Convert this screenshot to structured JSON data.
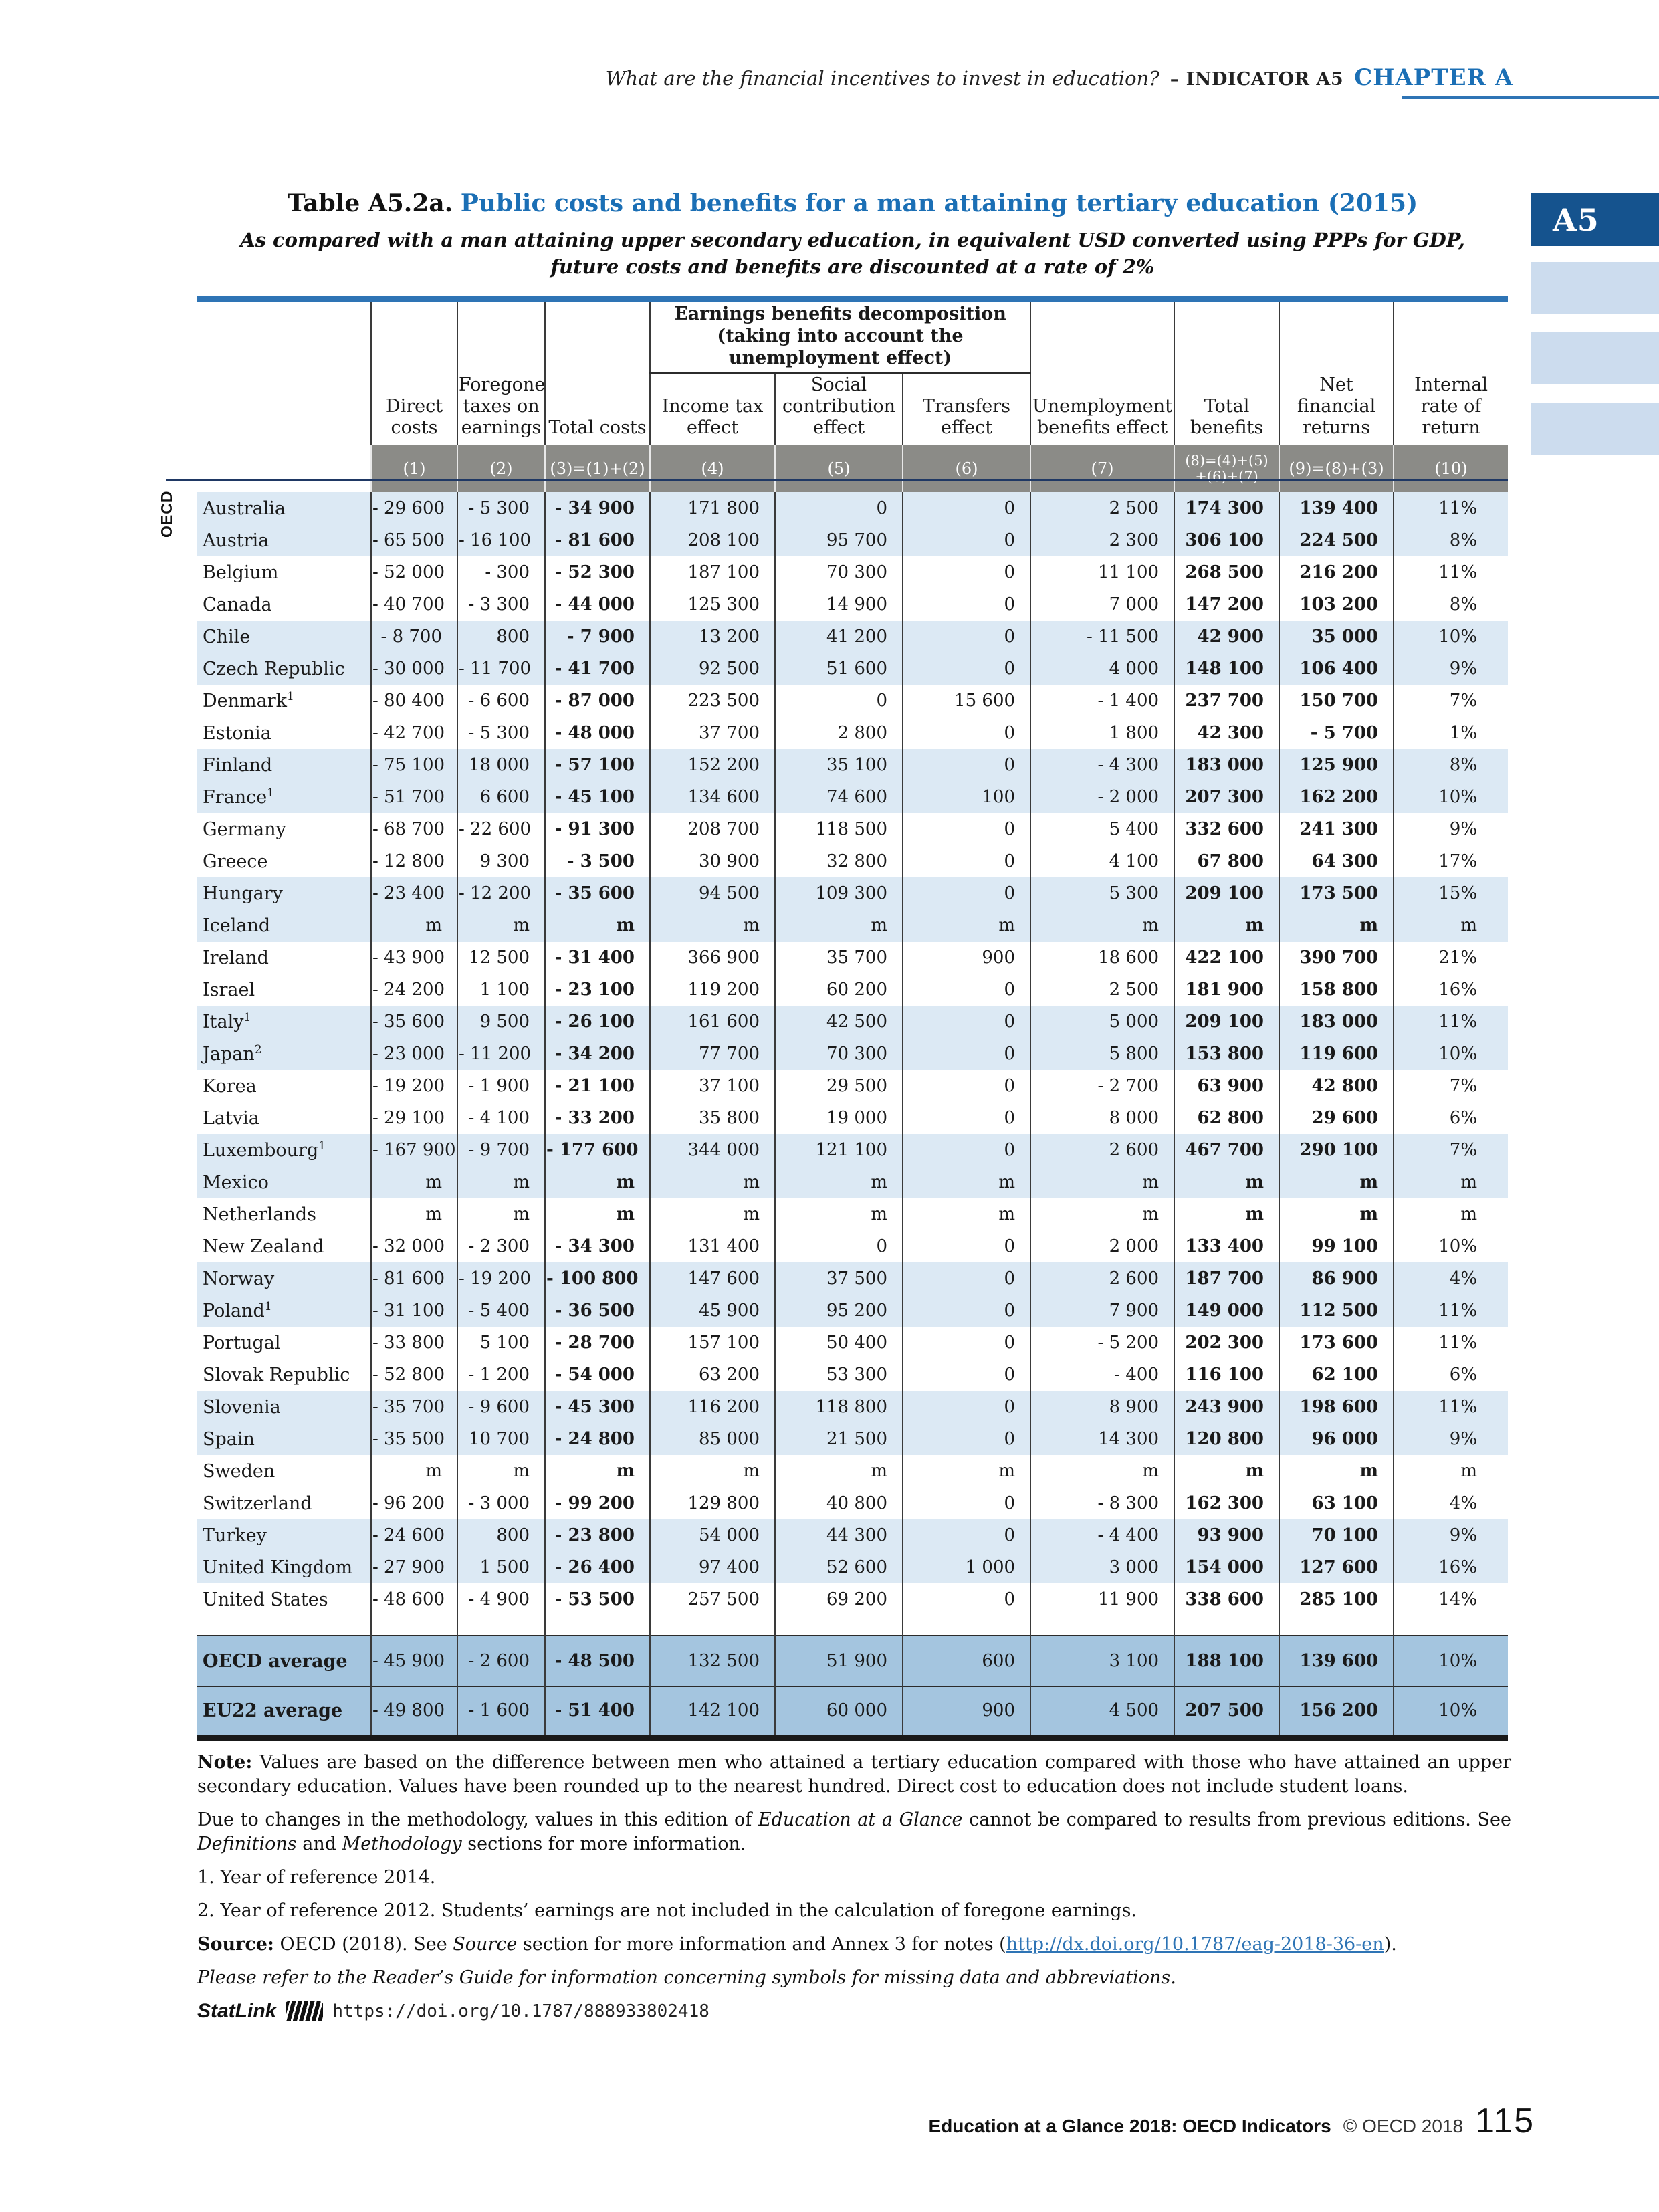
{
  "header": {
    "running_title": "What are the financial incentives to invest in education?",
    "indicator": "– INDICATOR A5",
    "chapter": "CHAPTER A"
  },
  "side_tab": {
    "label": "A5"
  },
  "title": {
    "table_label": "Table A5.2a.",
    "main": "Public costs and benefits for a man attaining tertiary education (2015)",
    "subtitle_line1": "As compared with a man attaining upper secondary education, in equivalent USD converted using PPPs for GDP,",
    "subtitle_line2": "future costs and benefits are discounted at a rate of 2%"
  },
  "table": {
    "group_header_line1": "Earnings benefits decomposition",
    "group_header_line2": "(taking into account the unemployment effect)",
    "columns": [
      "Direct costs",
      "Foregone taxes on earnings",
      "Total costs",
      "Income tax effect",
      "Social contribution effect",
      "Transfers effect",
      "Unemployment benefits effect",
      "Total benefits",
      "Net financial returns",
      "Internal rate of return"
    ],
    "band": [
      "(1)",
      "(2)",
      "(3)=(1)+(2)",
      "(4)",
      "(5)",
      "(6)",
      "(7)",
      "(8)=(4)+(5)\n+(6)+(7)",
      "(9)=(8)+(3)",
      "(10)"
    ],
    "row_group_label": "OECD",
    "rows": [
      {
        "country": "Australia",
        "sup": "",
        "values": [
          "- 29 600",
          "- 5 300",
          "- 34 900",
          "171 800",
          "0",
          "0",
          "2 500",
          "174 300",
          "139 400",
          "11%"
        ]
      },
      {
        "country": "Austria",
        "sup": "",
        "values": [
          "- 65 500",
          "- 16 100",
          "- 81 600",
          "208 100",
          "95 700",
          "0",
          "2 300",
          "306 100",
          "224 500",
          "8%"
        ]
      },
      {
        "country": "Belgium",
        "sup": "",
        "values": [
          "- 52 000",
          "- 300",
          "- 52 300",
          "187 100",
          "70 300",
          "0",
          "11 100",
          "268 500",
          "216 200",
          "11%"
        ]
      },
      {
        "country": "Canada",
        "sup": "",
        "values": [
          "- 40 700",
          "- 3 300",
          "- 44 000",
          "125 300",
          "14 900",
          "0",
          "7 000",
          "147 200",
          "103 200",
          "8%"
        ]
      },
      {
        "country": "Chile",
        "sup": "",
        "values": [
          "- 8 700",
          "800",
          "- 7 900",
          "13 200",
          "41 200",
          "0",
          "- 11 500",
          "42 900",
          "35 000",
          "10%"
        ]
      },
      {
        "country": "Czech Republic",
        "sup": "",
        "values": [
          "- 30 000",
          "- 11 700",
          "- 41 700",
          "92 500",
          "51 600",
          "0",
          "4 000",
          "148 100",
          "106 400",
          "9%"
        ]
      },
      {
        "country": "Denmark",
        "sup": "1",
        "values": [
          "- 80 400",
          "- 6 600",
          "- 87 000",
          "223 500",
          "0",
          "15 600",
          "- 1 400",
          "237 700",
          "150 700",
          "7%"
        ]
      },
      {
        "country": "Estonia",
        "sup": "",
        "values": [
          "- 42 700",
          "- 5 300",
          "- 48 000",
          "37 700",
          "2 800",
          "0",
          "1 800",
          "42 300",
          "- 5 700",
          "1%"
        ]
      },
      {
        "country": "Finland",
        "sup": "",
        "values": [
          "- 75 100",
          "18 000",
          "- 57 100",
          "152 200",
          "35 100",
          "0",
          "- 4 300",
          "183 000",
          "125 900",
          "8%"
        ]
      },
      {
        "country": "France",
        "sup": "1",
        "values": [
          "- 51 700",
          "6 600",
          "- 45 100",
          "134 600",
          "74 600",
          "100",
          "- 2 000",
          "207 300",
          "162 200",
          "10%"
        ]
      },
      {
        "country": "Germany",
        "sup": "",
        "values": [
          "- 68 700",
          "- 22 600",
          "- 91 300",
          "208 700",
          "118 500",
          "0",
          "5 400",
          "332 600",
          "241 300",
          "9%"
        ]
      },
      {
        "country": "Greece",
        "sup": "",
        "values": [
          "- 12 800",
          "9 300",
          "- 3 500",
          "30 900",
          "32 800",
          "0",
          "4 100",
          "67 800",
          "64 300",
          "17%"
        ]
      },
      {
        "country": "Hungary",
        "sup": "",
        "values": [
          "- 23 400",
          "- 12 200",
          "- 35 600",
          "94 500",
          "109 300",
          "0",
          "5 300",
          "209 100",
          "173 500",
          "15%"
        ]
      },
      {
        "country": "Iceland",
        "sup": "",
        "values": [
          "m",
          "m",
          "m",
          "m",
          "m",
          "m",
          "m",
          "m",
          "m",
          "m"
        ]
      },
      {
        "country": "Ireland",
        "sup": "",
        "values": [
          "- 43 900",
          "12 500",
          "- 31 400",
          "366 900",
          "35 700",
          "900",
          "18 600",
          "422 100",
          "390 700",
          "21%"
        ]
      },
      {
        "country": "Israel",
        "sup": "",
        "values": [
          "- 24 200",
          "1 100",
          "- 23 100",
          "119 200",
          "60 200",
          "0",
          "2 500",
          "181 900",
          "158 800",
          "16%"
        ]
      },
      {
        "country": "Italy",
        "sup": "1",
        "values": [
          "- 35 600",
          "9 500",
          "- 26 100",
          "161 600",
          "42 500",
          "0",
          "5 000",
          "209 100",
          "183 000",
          "11%"
        ]
      },
      {
        "country": "Japan",
        "sup": "2",
        "values": [
          "- 23 000",
          "- 11 200",
          "- 34 200",
          "77 700",
          "70 300",
          "0",
          "5 800",
          "153 800",
          "119 600",
          "10%"
        ]
      },
      {
        "country": "Korea",
        "sup": "",
        "values": [
          "- 19 200",
          "- 1 900",
          "- 21 100",
          "37 100",
          "29 500",
          "0",
          "- 2 700",
          "63 900",
          "42 800",
          "7%"
        ]
      },
      {
        "country": "Latvia",
        "sup": "",
        "values": [
          "- 29 100",
          "- 4 100",
          "- 33 200",
          "35 800",
          "19 000",
          "0",
          "8 000",
          "62 800",
          "29 600",
          "6%"
        ]
      },
      {
        "country": "Luxembourg",
        "sup": "1",
        "values": [
          "- 167 900",
          "- 9 700",
          "- 177 600",
          "344 000",
          "121 100",
          "0",
          "2 600",
          "467 700",
          "290 100",
          "7%"
        ]
      },
      {
        "country": "Mexico",
        "sup": "",
        "values": [
          "m",
          "m",
          "m",
          "m",
          "m",
          "m",
          "m",
          "m",
          "m",
          "m"
        ]
      },
      {
        "country": "Netherlands",
        "sup": "",
        "values": [
          "m",
          "m",
          "m",
          "m",
          "m",
          "m",
          "m",
          "m",
          "m",
          "m"
        ]
      },
      {
        "country": "New Zealand",
        "sup": "",
        "values": [
          "- 32 000",
          "- 2 300",
          "- 34 300",
          "131 400",
          "0",
          "0",
          "2 000",
          "133 400",
          "99 100",
          "10%"
        ]
      },
      {
        "country": "Norway",
        "sup": "",
        "values": [
          "- 81 600",
          "- 19 200",
          "- 100 800",
          "147 600",
          "37 500",
          "0",
          "2 600",
          "187 700",
          "86 900",
          "4%"
        ]
      },
      {
        "country": "Poland",
        "sup": "1",
        "values": [
          "- 31 100",
          "- 5 400",
          "- 36 500",
          "45 900",
          "95 200",
          "0",
          "7 900",
          "149 000",
          "112 500",
          "11%"
        ]
      },
      {
        "country": "Portugal",
        "sup": "",
        "values": [
          "- 33 800",
          "5 100",
          "- 28 700",
          "157 100",
          "50 400",
          "0",
          "- 5 200",
          "202 300",
          "173 600",
          "11%"
        ]
      },
      {
        "country": "Slovak Republic",
        "sup": "",
        "values": [
          "- 52 800",
          "- 1 200",
          "- 54 000",
          "63 200",
          "53 300",
          "0",
          "- 400",
          "116 100",
          "62 100",
          "6%"
        ]
      },
      {
        "country": "Slovenia",
        "sup": "",
        "values": [
          "- 35 700",
          "- 9 600",
          "- 45 300",
          "116 200",
          "118 800",
          "0",
          "8 900",
          "243 900",
          "198 600",
          "11%"
        ]
      },
      {
        "country": "Spain",
        "sup": "",
        "values": [
          "- 35 500",
          "10 700",
          "- 24 800",
          "85 000",
          "21 500",
          "0",
          "14 300",
          "120 800",
          "96 000",
          "9%"
        ]
      },
      {
        "country": "Sweden",
        "sup": "",
        "values": [
          "m",
          "m",
          "m",
          "m",
          "m",
          "m",
          "m",
          "m",
          "m",
          "m"
        ]
      },
      {
        "country": "Switzerland",
        "sup": "",
        "values": [
          "- 96 200",
          "- 3 000",
          "- 99 200",
          "129 800",
          "40 800",
          "0",
          "- 8 300",
          "162 300",
          "63 100",
          "4%"
        ]
      },
      {
        "country": "Turkey",
        "sup": "",
        "values": [
          "- 24 600",
          "800",
          "- 23 800",
          "54 000",
          "44 300",
          "0",
          "- 4 400",
          "93 900",
          "70 100",
          "9%"
        ]
      },
      {
        "country": "United Kingdom",
        "sup": "",
        "values": [
          "- 27 900",
          "1 500",
          "- 26 400",
          "97 400",
          "52 600",
          "1 000",
          "3 000",
          "154 000",
          "127 600",
          "16%"
        ]
      },
      {
        "country": "United States",
        "sup": "",
        "values": [
          "- 48 600",
          "- 4 900",
          "- 53 500",
          "257 500",
          "69 200",
          "0",
          "11 900",
          "338 600",
          "285 100",
          "14%"
        ]
      }
    ],
    "average_rows": [
      {
        "country": "OECD average",
        "values": [
          "- 45 900",
          "- 2 600",
          "- 48 500",
          "132 500",
          "51 900",
          "600",
          "3 100",
          "188 100",
          "139 600",
          "10%"
        ]
      },
      {
        "country": "EU22 average",
        "values": [
          "- 49 800",
          "- 1 600",
          "- 51 400",
          "142 100",
          "60 000",
          "900",
          "4 500",
          "207 500",
          "156 200",
          "10%"
        ]
      }
    ]
  },
  "notes": {
    "note_label": "Note:",
    "note_body": " Values are based on the difference between men who attained a tertiary education compared with those who have attained an upper secondary education. Values have been rounded up to the nearest hundred. Direct cost to education does not include student loans.",
    "method_a": "Due to changes in the methodology, values in this edition of ",
    "method_b": "Education at a Glance",
    "method_c": " cannot be compared to results from previous editions. See ",
    "method_d": "Definitions",
    "method_e": " and ",
    "method_f": "Methodology",
    "method_g": " sections for more information.",
    "fn1": "1. Year of reference 2014.",
    "fn2": "2. Year of reference 2012. Students’ earnings are not included in the calculation of foregone earnings.",
    "source_label": "Source:",
    "source_a": " OECD (2018). See ",
    "source_b": "Source",
    "source_c": " section for more information and Annex 3 for notes (",
    "source_link": "http://dx.doi.org/10.1787/eag-2018-36-en",
    "source_d": ").",
    "readers_guide": "Please refer to the Reader’s Guide for information concerning symbols for missing data and abbreviations.",
    "statlink_label": "StatLink",
    "statlink_url": "https://doi.org/10.1787/888933802418"
  },
  "footer": {
    "book_title": "Education at a Glance 2018: OECD Indicators",
    "copyright": "© OECD 2018",
    "page_number": "115"
  }
}
